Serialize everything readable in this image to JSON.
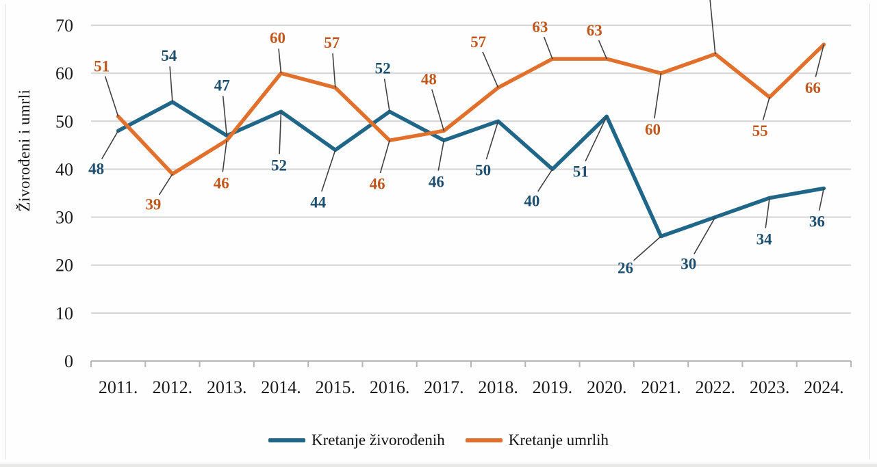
{
  "chart_data": {
    "type": "line",
    "title": "",
    "ylabel": "Živorođeni i umrli",
    "xlabel": "",
    "x_categories": [
      "2011.",
      "2012.",
      "2013.",
      "2014.",
      "2015.",
      "2016.",
      "2017.",
      "2018.",
      "2019.",
      "2020.",
      "2021.",
      "2022.",
      "2023.",
      "2024."
    ],
    "y_ticks": [
      0,
      10,
      20,
      30,
      40,
      50,
      60,
      70
    ],
    "ylim": [
      0,
      70
    ],
    "grid": "horizontal",
    "legend_position": "bottom",
    "series": [
      {
        "name": "Kretanje živorođenih",
        "color": "#1f6688",
        "label_color": "#1c4f6e",
        "values": [
          48,
          54,
          47,
          52,
          44,
          52,
          46,
          50,
          40,
          51,
          26,
          30,
          34,
          36
        ]
      },
      {
        "name": "Kretanje umrlih",
        "color": "#e2702d",
        "label_color": "#c0571d",
        "values": [
          51,
          39,
          46,
          60,
          57,
          46,
          48,
          57,
          63,
          63,
          60,
          64,
          55,
          66
        ]
      }
    ],
    "colors": {
      "grid": "#d7d7d7",
      "axis": "#b5b5b5",
      "tick_text": "#1a1a1a",
      "leader_line": "#404040",
      "background": "#ffffff"
    }
  }
}
